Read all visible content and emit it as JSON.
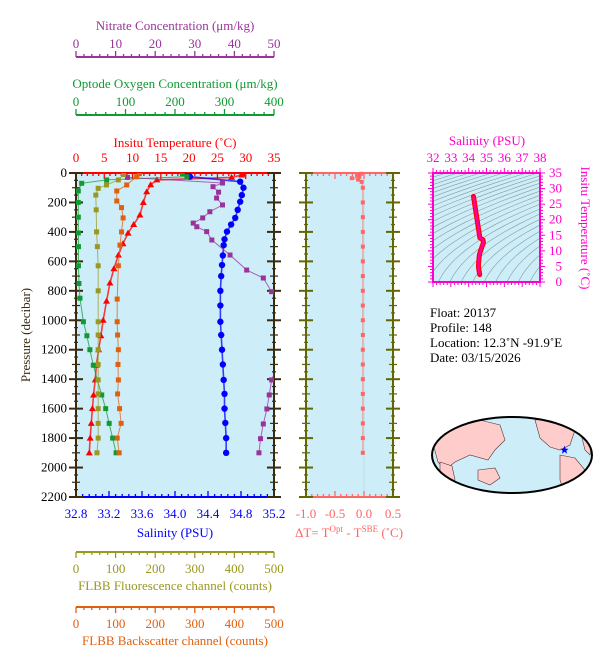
{
  "colors": {
    "nitrate": "#993399",
    "oxygen": "#119933",
    "temperature": "#ff0000",
    "salinity": "#0000ff",
    "fluorescence": "#999922",
    "backscatter": "#e06010",
    "delta_t": "#ff6666",
    "ts": "#ff00cc",
    "plot_bg": "#cdeef8",
    "pressure_axis": "#3a2a10",
    "delta_panel_border": "#666600",
    "land": "#ffcccc"
  },
  "chart_data": [
    {
      "type": "line",
      "ylabel": "Pressure (decibar)",
      "ylim": [
        2200,
        0
      ],
      "yticks": [
        0,
        200,
        400,
        600,
        800,
        1000,
        1200,
        1400,
        1600,
        1800,
        2000,
        2200
      ],
      "axes": {
        "nitrate": {
          "label": "Nitrate Concentration (μm/kg)",
          "range": [
            0,
            50
          ],
          "ticks": [
            0,
            10,
            20,
            30,
            40,
            50
          ]
        },
        "oxygen": {
          "label": "Optode Oxygen Concentration (μm/kg)",
          "range": [
            0,
            400
          ],
          "ticks": [
            0,
            100,
            200,
            300,
            400
          ]
        },
        "temperature": {
          "label": "Insitu Temperature (˚C)",
          "range": [
            0,
            35
          ],
          "ticks": [
            0,
            5,
            10,
            15,
            20,
            25,
            30,
            35
          ]
        },
        "salinity": {
          "label": "Salinity (PSU)",
          "range": [
            32.8,
            35.2
          ],
          "ticks": [
            "32.8",
            "33.2",
            "33.6",
            "34.0",
            "34.4",
            "34.8",
            "35.2"
          ]
        },
        "fluorescence": {
          "label": "FLBB Fluorescence channel (counts)",
          "range": [
            0,
            500
          ],
          "ticks": [
            0,
            100,
            200,
            300,
            400,
            500
          ]
        },
        "backscatter": {
          "label": "FLBB Backscatter channel (counts)",
          "range": [
            0,
            500
          ],
          "ticks": [
            0,
            100,
            200,
            300,
            400,
            500
          ]
        }
      },
      "series": [
        {
          "key": "temperature",
          "marker": "triangle",
          "points": [
            [
              5,
              29.5
            ],
            [
              14,
              29.3
            ],
            [
              30,
              27.5
            ],
            [
              47,
              14.3
            ],
            [
              80,
              13.2
            ],
            [
              127,
              12.5
            ],
            [
              200,
              11.9
            ],
            [
              285,
              11.3
            ],
            [
              350,
              10.2
            ],
            [
              408,
              9.2
            ],
            [
              480,
              8.3
            ],
            [
              557,
              7.5
            ],
            [
              650,
              6.7
            ],
            [
              747,
              6.0
            ],
            [
              870,
              5.4
            ],
            [
              1000,
              4.8
            ],
            [
              1105,
              4.4
            ],
            [
              1200,
              4.0
            ],
            [
              1305,
              3.6
            ],
            [
              1405,
              3.4
            ],
            [
              1507,
              3.1
            ],
            [
              1600,
              2.9
            ],
            [
              1700,
              2.7
            ],
            [
              1800,
              2.5
            ],
            [
              1900,
              2.35
            ]
          ]
        },
        {
          "key": "salinity",
          "marker": "circle",
          "points": [
            [
              5,
              34.15
            ],
            [
              25,
              34.18
            ],
            [
              59,
              34.79
            ],
            [
              100,
              34.83
            ],
            [
              150,
              34.81
            ],
            [
              195,
              34.79
            ],
            [
              250,
              34.76
            ],
            [
              305,
              34.73
            ],
            [
              350,
              34.68
            ],
            [
              398,
              34.63
            ],
            [
              450,
              34.6
            ],
            [
              490,
              34.59
            ],
            [
              560,
              34.58
            ],
            [
              625,
              34.57
            ],
            [
              700,
              34.56
            ],
            [
              800,
              34.55
            ],
            [
              900,
              34.55
            ],
            [
              1010,
              34.55
            ],
            [
              1100,
              34.56
            ],
            [
              1200,
              34.57
            ],
            [
              1300,
              34.58
            ],
            [
              1405,
              34.59
            ],
            [
              1500,
              34.6
            ],
            [
              1600,
              34.6
            ],
            [
              1697,
              34.61
            ],
            [
              1800,
              34.62
            ],
            [
              1900,
              34.62
            ]
          ]
        },
        {
          "key": "oxygen",
          "marker": "square",
          "points": [
            [
              5,
              215
            ],
            [
              25,
              224
            ],
            [
              47,
              62
            ],
            [
              70,
              11.5
            ],
            [
              122,
              4.7
            ],
            [
              200,
              4.7
            ],
            [
              300,
              4.7
            ],
            [
              407,
              4.7
            ],
            [
              500,
              5
            ],
            [
              630,
              5
            ],
            [
              750,
              6
            ],
            [
              850,
              8
            ],
            [
              1010,
              15
            ],
            [
              1105,
              22
            ],
            [
              1200,
              28
            ],
            [
              1305,
              35
            ],
            [
              1405,
              43
            ],
            [
              1507,
              52
            ],
            [
              1600,
              60
            ],
            [
              1700,
              67
            ],
            [
              1800,
              74
            ],
            [
              1900,
              81
            ]
          ]
        },
        {
          "key": "nitrate",
          "marker": "square",
          "points": [
            [
              10,
              12
            ],
            [
              30,
              13
            ],
            [
              68,
              37
            ],
            [
              93,
              34.6
            ],
            [
              130,
              36
            ],
            [
              170,
              35.5
            ],
            [
              217,
              37
            ],
            [
              263,
              33.8
            ],
            [
              305,
              32
            ],
            [
              340,
              29.6
            ],
            [
              365,
              30.5
            ],
            [
              398,
              33
            ],
            [
              455,
              34.3
            ],
            [
              557,
              38.9
            ],
            [
              659,
              43.1
            ],
            [
              713,
              47.3
            ],
            [
              806,
              49.4
            ],
            [
              900,
              52
            ],
            [
              1000,
              53
            ],
            [
              1100,
              53
            ],
            [
              1200,
              52
            ],
            [
              1300,
              51
            ],
            [
              1405,
              49.4
            ],
            [
              1507,
              48.8
            ],
            [
              1602,
              48.2
            ],
            [
              1704,
              47.3
            ],
            [
              1804,
              46.6
            ],
            [
              1900,
              46.2
            ]
          ]
        },
        {
          "key": "fluorescence",
          "marker": "square",
          "points": [
            [
              10,
              120
            ],
            [
              47,
              107
            ],
            [
              81,
              77
            ],
            [
              104,
              56
            ],
            [
              150,
              50
            ],
            [
              250,
              51
            ],
            [
              400,
              52
            ],
            [
              500,
              54
            ],
            [
              630,
              56
            ],
            [
              800,
              56
            ],
            [
              1010,
              56
            ],
            [
              1100,
              56
            ],
            [
              1200,
              56
            ],
            [
              1300,
              56
            ],
            [
              1405,
              56
            ],
            [
              1500,
              56
            ],
            [
              1600,
              56
            ],
            [
              1700,
              56
            ],
            [
              1800,
              56
            ],
            [
              1900,
              53
            ]
          ]
        },
        {
          "key": "backscatter",
          "marker": "square",
          "points": [
            [
              5,
              160
            ],
            [
              25,
              153
            ],
            [
              81,
              128
            ],
            [
              122,
              103
            ],
            [
              190,
              103
            ],
            [
              235,
              115
            ],
            [
              305,
              119
            ],
            [
              400,
              115
            ],
            [
              490,
              111
            ],
            [
              630,
              107
            ],
            [
              856,
              104
            ],
            [
              1010,
              104
            ],
            [
              1100,
              105
            ],
            [
              1200,
              107
            ],
            [
              1300,
              106
            ],
            [
              1405,
              107
            ],
            [
              1500,
              105
            ],
            [
              1600,
              110
            ],
            [
              1700,
              114
            ],
            [
              1800,
              104
            ],
            [
              1900,
              109
            ]
          ]
        }
      ]
    },
    {
      "type": "line",
      "xlabel_parts": [
        "ΔT= T",
        "Opt",
        " - T",
        "SBE",
        " (˚C)"
      ],
      "xlim": [
        -1.0,
        0.5
      ],
      "xticks": [
        "-1.0",
        "-0.5",
        "0.0",
        "0.5"
      ],
      "ylim": [
        2200,
        0
      ],
      "points": [
        [
          5,
          -0.05
        ],
        [
          15,
          -0.12
        ],
        [
          25,
          -0.08
        ],
        [
          35,
          -0.21
        ],
        [
          45,
          -0.1
        ],
        [
          60,
          -0.04
        ],
        [
          100,
          -0.02
        ],
        [
          200,
          -0.02
        ],
        [
          300,
          -0.02
        ],
        [
          400,
          -0.02
        ],
        [
          500,
          -0.02
        ],
        [
          600,
          -0.02
        ],
        [
          700,
          -0.02
        ],
        [
          800,
          -0.02
        ],
        [
          900,
          -0.02
        ],
        [
          1000,
          -0.02
        ],
        [
          1100,
          -0.02
        ],
        [
          1200,
          -0.02
        ],
        [
          1300,
          -0.02
        ],
        [
          1400,
          -0.02
        ],
        [
          1500,
          -0.02
        ],
        [
          1600,
          -0.02
        ],
        [
          1700,
          -0.02
        ],
        [
          1800,
          -0.02
        ],
        [
          1900,
          -0.02
        ]
      ]
    },
    {
      "type": "scatter",
      "xlabel": "Salinity (PSU)",
      "ylabel": "Insitu Temperature (˚C)",
      "xlim": [
        32,
        38
      ],
      "ylim": [
        0,
        35
      ],
      "xticks": [
        32,
        33,
        34,
        35,
        36,
        37,
        38
      ],
      "yticks": [
        0,
        5,
        10,
        15,
        20,
        25,
        30,
        35
      ],
      "density_contours": true
    }
  ],
  "info": {
    "float": "Float:  20137",
    "profile": "Profile:  148",
    "location": "Location:  12.3˚N  -91.9˚E",
    "date": "Date:  03/15/2026"
  },
  "map": {
    "projection": "world",
    "marker": "star",
    "lat": 12.3,
    "lon": -91.9
  }
}
